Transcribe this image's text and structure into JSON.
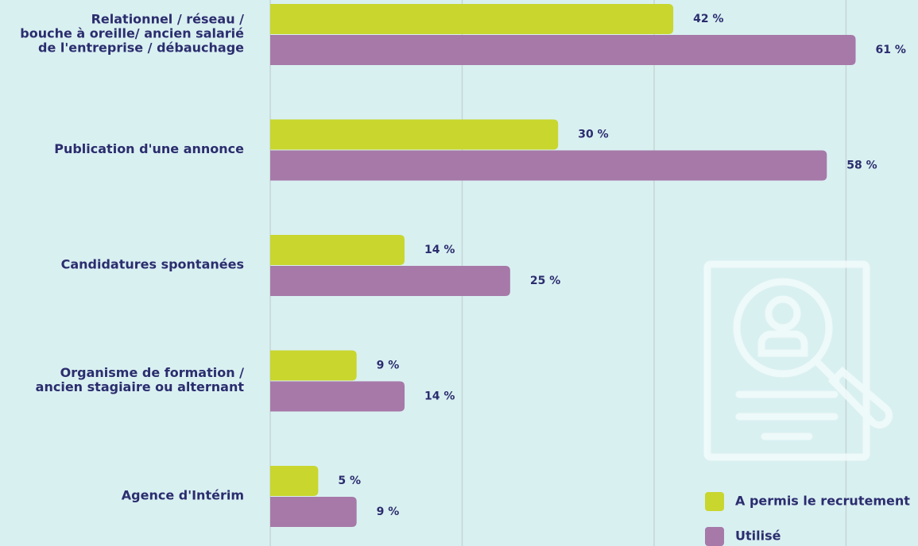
{
  "chart_data": {
    "type": "bar",
    "orientation": "horizontal",
    "categories": [
      [
        "Relationnel / réseau /",
        "bouche à oreille/ ancien salarié",
        "de l'entreprise / débauchage"
      ],
      [
        "Publication d'une annonce"
      ],
      [
        "Candidatures spontanées"
      ],
      [
        "Organisme de formation /",
        "ancien stagiaire ou alternant"
      ],
      [
        "Agence d'Intérim"
      ]
    ],
    "series": [
      {
        "name": "A permis le recrutement",
        "color": "#c8d62e",
        "values": [
          42,
          30,
          14,
          9,
          5
        ],
        "value_labels": [
          "42 %",
          "30 %",
          "14 %",
          "9 %",
          "5 %"
        ]
      },
      {
        "name": "Utilisé",
        "color": "#a679a8",
        "values": [
          61,
          58,
          25,
          14,
          9
        ],
        "value_labels": [
          "61 %",
          "58 %",
          "25 %",
          "14 %",
          "9 %"
        ]
      }
    ],
    "xlim": [
      0,
      67.5
    ],
    "xticks": [
      0,
      20,
      40,
      60
    ],
    "grid": true,
    "legend": "bottom-right"
  }
}
